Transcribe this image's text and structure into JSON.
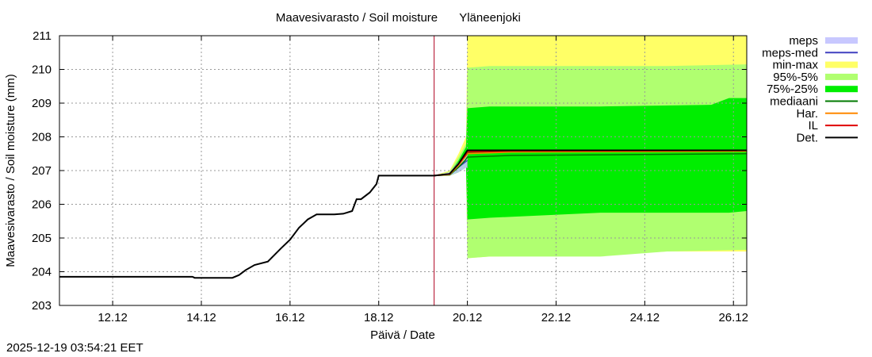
{
  "chart_data": {
    "type": "line",
    "title": "Maavesivarasto / Soil moisture",
    "station": "Yläneenjoki",
    "xlabel": "Päivä / Date",
    "ylabel": "Maavesivarasto / Soil moisture (mm)",
    "xlim_days": [
      10.8,
      26.3
    ],
    "ylim": [
      203,
      211
    ],
    "x_tick_days": [
      12,
      14,
      16,
      18,
      20,
      22,
      24,
      26
    ],
    "x_tick_labels": [
      "12.12",
      "14.12",
      "16.12",
      "18.12",
      "20.12",
      "22.12",
      "24.12",
      "26.12"
    ],
    "y_ticks": [
      203,
      204,
      205,
      206,
      207,
      208,
      209,
      210,
      211
    ],
    "grid": true,
    "forecast_start_day": 19.25,
    "legend": {
      "placement": "right",
      "items": [
        {
          "label": "meps",
          "color": "#c8c8ff",
          "kind": "band"
        },
        {
          "label": "meps-med",
          "color": "#4040c0",
          "kind": "line"
        },
        {
          "label": "min-max",
          "color": "#ffff66",
          "kind": "band"
        },
        {
          "label": "95%-5%",
          "color": "#b0ff70",
          "kind": "band"
        },
        {
          "label": "75%-25%",
          "color": "#00ee00",
          "kind": "band"
        },
        {
          "label": "mediaani",
          "color": "#007a00",
          "kind": "line"
        },
        {
          "label": "Har.",
          "color": "#ff8800",
          "kind": "line"
        },
        {
          "label": "IL",
          "color": "#e00000",
          "kind": "line"
        },
        {
          "label": "Det.",
          "color": "#000000",
          "kind": "line"
        }
      ]
    },
    "observed": {
      "name": "Det.",
      "x": [
        10.8,
        12.0,
        13.0,
        13.8,
        13.85,
        14.0,
        14.5,
        14.7,
        14.85,
        15.0,
        15.2,
        15.5,
        15.8,
        16.0,
        16.2,
        16.4,
        16.6,
        17.0,
        17.2,
        17.4,
        17.5,
        17.6,
        17.8,
        17.95,
        18.0,
        18.5,
        19.0,
        19.25
      ],
      "y": [
        203.85,
        203.85,
        203.85,
        203.85,
        203.82,
        203.82,
        203.82,
        203.82,
        203.9,
        204.05,
        204.2,
        204.3,
        204.7,
        204.95,
        205.3,
        205.55,
        205.7,
        205.7,
        205.72,
        205.8,
        206.15,
        206.15,
        206.35,
        206.6,
        206.85,
        206.85,
        206.85,
        206.85
      ]
    },
    "forecast_det": {
      "x": [
        19.25,
        19.6,
        19.8,
        19.95,
        20.0,
        22.0,
        26.3
      ],
      "y": [
        206.85,
        206.9,
        207.2,
        207.5,
        207.6,
        207.6,
        207.6
      ]
    },
    "forecast_il": {
      "x": [
        19.25,
        19.6,
        19.8,
        19.95,
        20.0,
        21.0,
        26.3
      ],
      "y": [
        206.85,
        206.9,
        207.2,
        207.45,
        207.55,
        207.58,
        207.6
      ]
    },
    "forecast_har": {
      "x": [
        19.25,
        19.6,
        19.8,
        19.95,
        20.0,
        21.0,
        26.3
      ],
      "y": [
        206.85,
        206.88,
        207.15,
        207.4,
        207.5,
        207.55,
        207.57
      ]
    },
    "forecast_median": {
      "x": [
        19.25,
        19.6,
        19.8,
        19.95,
        20.0,
        21.0,
        26.3
      ],
      "y": [
        206.85,
        206.87,
        207.1,
        207.3,
        207.4,
        207.45,
        207.5
      ]
    },
    "meps_median": {
      "x": [
        19.25,
        19.6,
        19.8,
        20.0
      ],
      "y": [
        206.85,
        206.9,
        207.1,
        207.3
      ]
    },
    "meps_band": {
      "x": [
        19.25,
        19.6,
        19.8,
        20.0
      ],
      "low": [
        206.85,
        206.85,
        206.95,
        207.1
      ],
      "high": [
        206.85,
        206.95,
        207.25,
        207.45
      ]
    },
    "band_minmax": {
      "x": [
        19.25,
        19.6,
        19.8,
        19.97,
        20.0,
        20.5,
        23.0,
        24.5,
        26.3
      ],
      "low": [
        206.85,
        206.85,
        206.95,
        207.2,
        204.4,
        204.45,
        204.5,
        204.6,
        204.6
      ],
      "high": [
        206.85,
        207.0,
        207.5,
        208.0,
        211.0,
        211.0,
        211.0,
        211.0,
        211.0
      ]
    },
    "band_95_5": {
      "x": [
        19.25,
        19.6,
        19.8,
        19.97,
        20.0,
        20.5,
        23.0,
        24.5,
        26.3
      ],
      "low": [
        206.85,
        206.85,
        206.95,
        207.15,
        204.4,
        204.45,
        204.45,
        204.6,
        204.65
      ],
      "high": [
        206.85,
        206.97,
        207.4,
        207.8,
        210.05,
        210.1,
        210.1,
        210.1,
        210.15
      ]
    },
    "band_75_25": {
      "x": [
        19.25,
        19.6,
        19.8,
        19.97,
        20.0,
        20.5,
        23.0,
        25.5,
        25.9,
        26.3
      ],
      "low": [
        206.85,
        206.85,
        206.95,
        207.1,
        205.55,
        205.6,
        205.75,
        205.75,
        205.75,
        205.8
      ],
      "high": [
        206.85,
        206.92,
        207.3,
        207.7,
        208.85,
        208.9,
        208.9,
        208.95,
        209.15,
        209.15
      ]
    }
  },
  "footer": {
    "timestamp": "2025-12-19 03:54:21 EET"
  }
}
